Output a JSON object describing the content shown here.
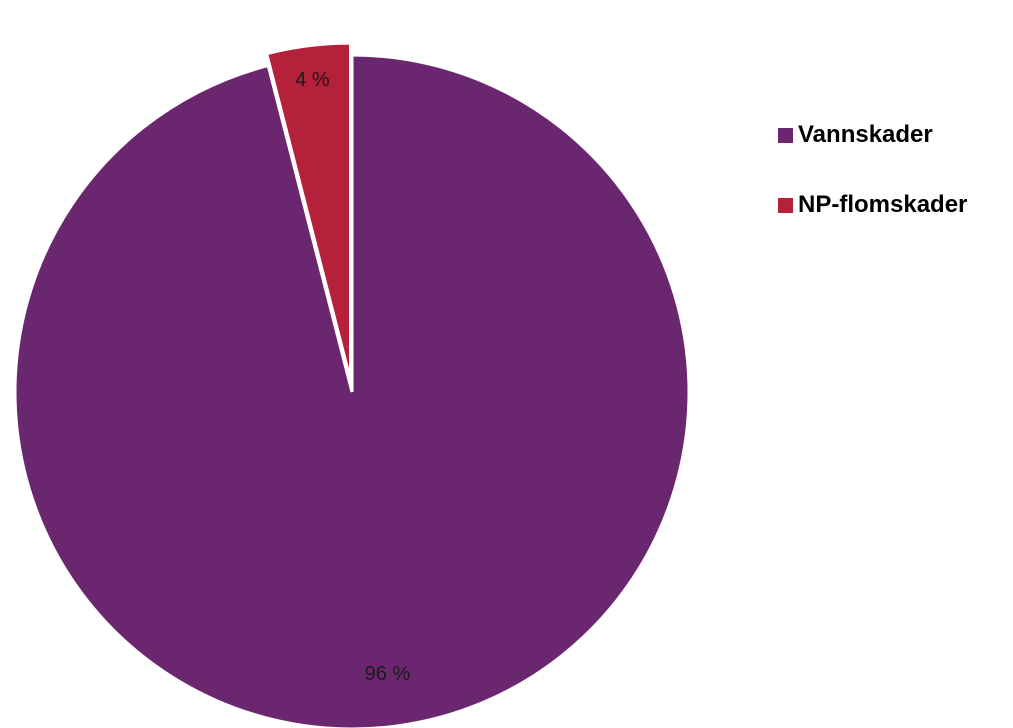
{
  "chart_data": {
    "type": "pie",
    "categories": [
      "Vannskader",
      "NP-flomskader"
    ],
    "values": [
      96,
      4
    ],
    "data_labels": [
      "96 %",
      "4 %"
    ],
    "colors": [
      "#6b2670",
      "#b5203b"
    ],
    "exploded": [
      false,
      true
    ],
    "legend_position": "right",
    "title": ""
  }
}
